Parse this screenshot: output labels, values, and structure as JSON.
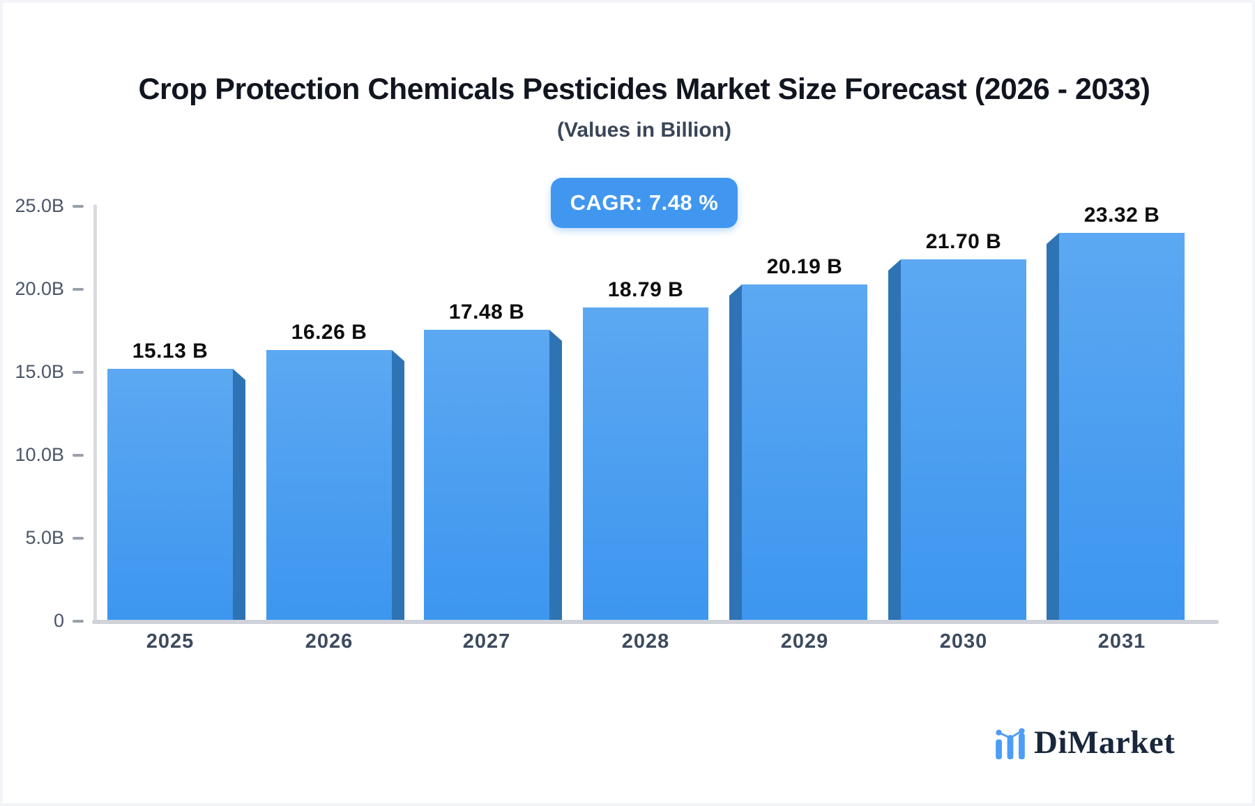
{
  "header": {
    "title": "Crop Protection Chemicals Pesticides Market Size Forecast (2026 - 2033)",
    "subtitle": "(Values in Billion)",
    "cagr_label": "CAGR: 7.48 %"
  },
  "chart_data": {
    "type": "bar",
    "title": "Crop Protection Chemicals Pesticides Market Size Forecast (2026 - 2033)",
    "subtitle": "(Values in Billion)",
    "annotation": "CAGR: 7.48 %",
    "categories": [
      "2025",
      "2026",
      "2027",
      "2028",
      "2029",
      "2030",
      "2031"
    ],
    "values": [
      15.13,
      16.26,
      17.48,
      18.79,
      20.19,
      21.7,
      23.32
    ],
    "value_labels": [
      "15.13 B",
      "16.26 B",
      "17.48 B",
      "18.79 B",
      "20.19 B",
      "21.70 B",
      "23.32 B"
    ],
    "xlabel": "",
    "ylabel": "",
    "ylim": [
      0,
      25
    ],
    "yticks": [
      0,
      5,
      10,
      15,
      20,
      25
    ],
    "ytick_labels": [
      "0",
      "5.0B",
      "10.0B",
      "15.0B",
      "20.0B",
      "25.0B"
    ],
    "grid": false,
    "legend": "none",
    "bar_style": "3d-bevel",
    "bar_color_top": "#5CA8F2",
    "bar_color_bottom": "#3D96EF",
    "bar_side_color": "#2E73B4"
  },
  "branding": {
    "logo_text": "DiMarket",
    "logo_icon": "bar-chart-trend-icon",
    "logo_icon_color": "#4C9DF5",
    "logo_text_color": "#18273C"
  },
  "colors": {
    "accent_blue": "#4197F0",
    "axis_gray": "#CFD2D8",
    "tick_text": "#4A5568",
    "year_text": "#3D4A5E",
    "title_text": "#10151F",
    "subtitle_text": "#3A4657",
    "background": "#FFFFFF"
  }
}
